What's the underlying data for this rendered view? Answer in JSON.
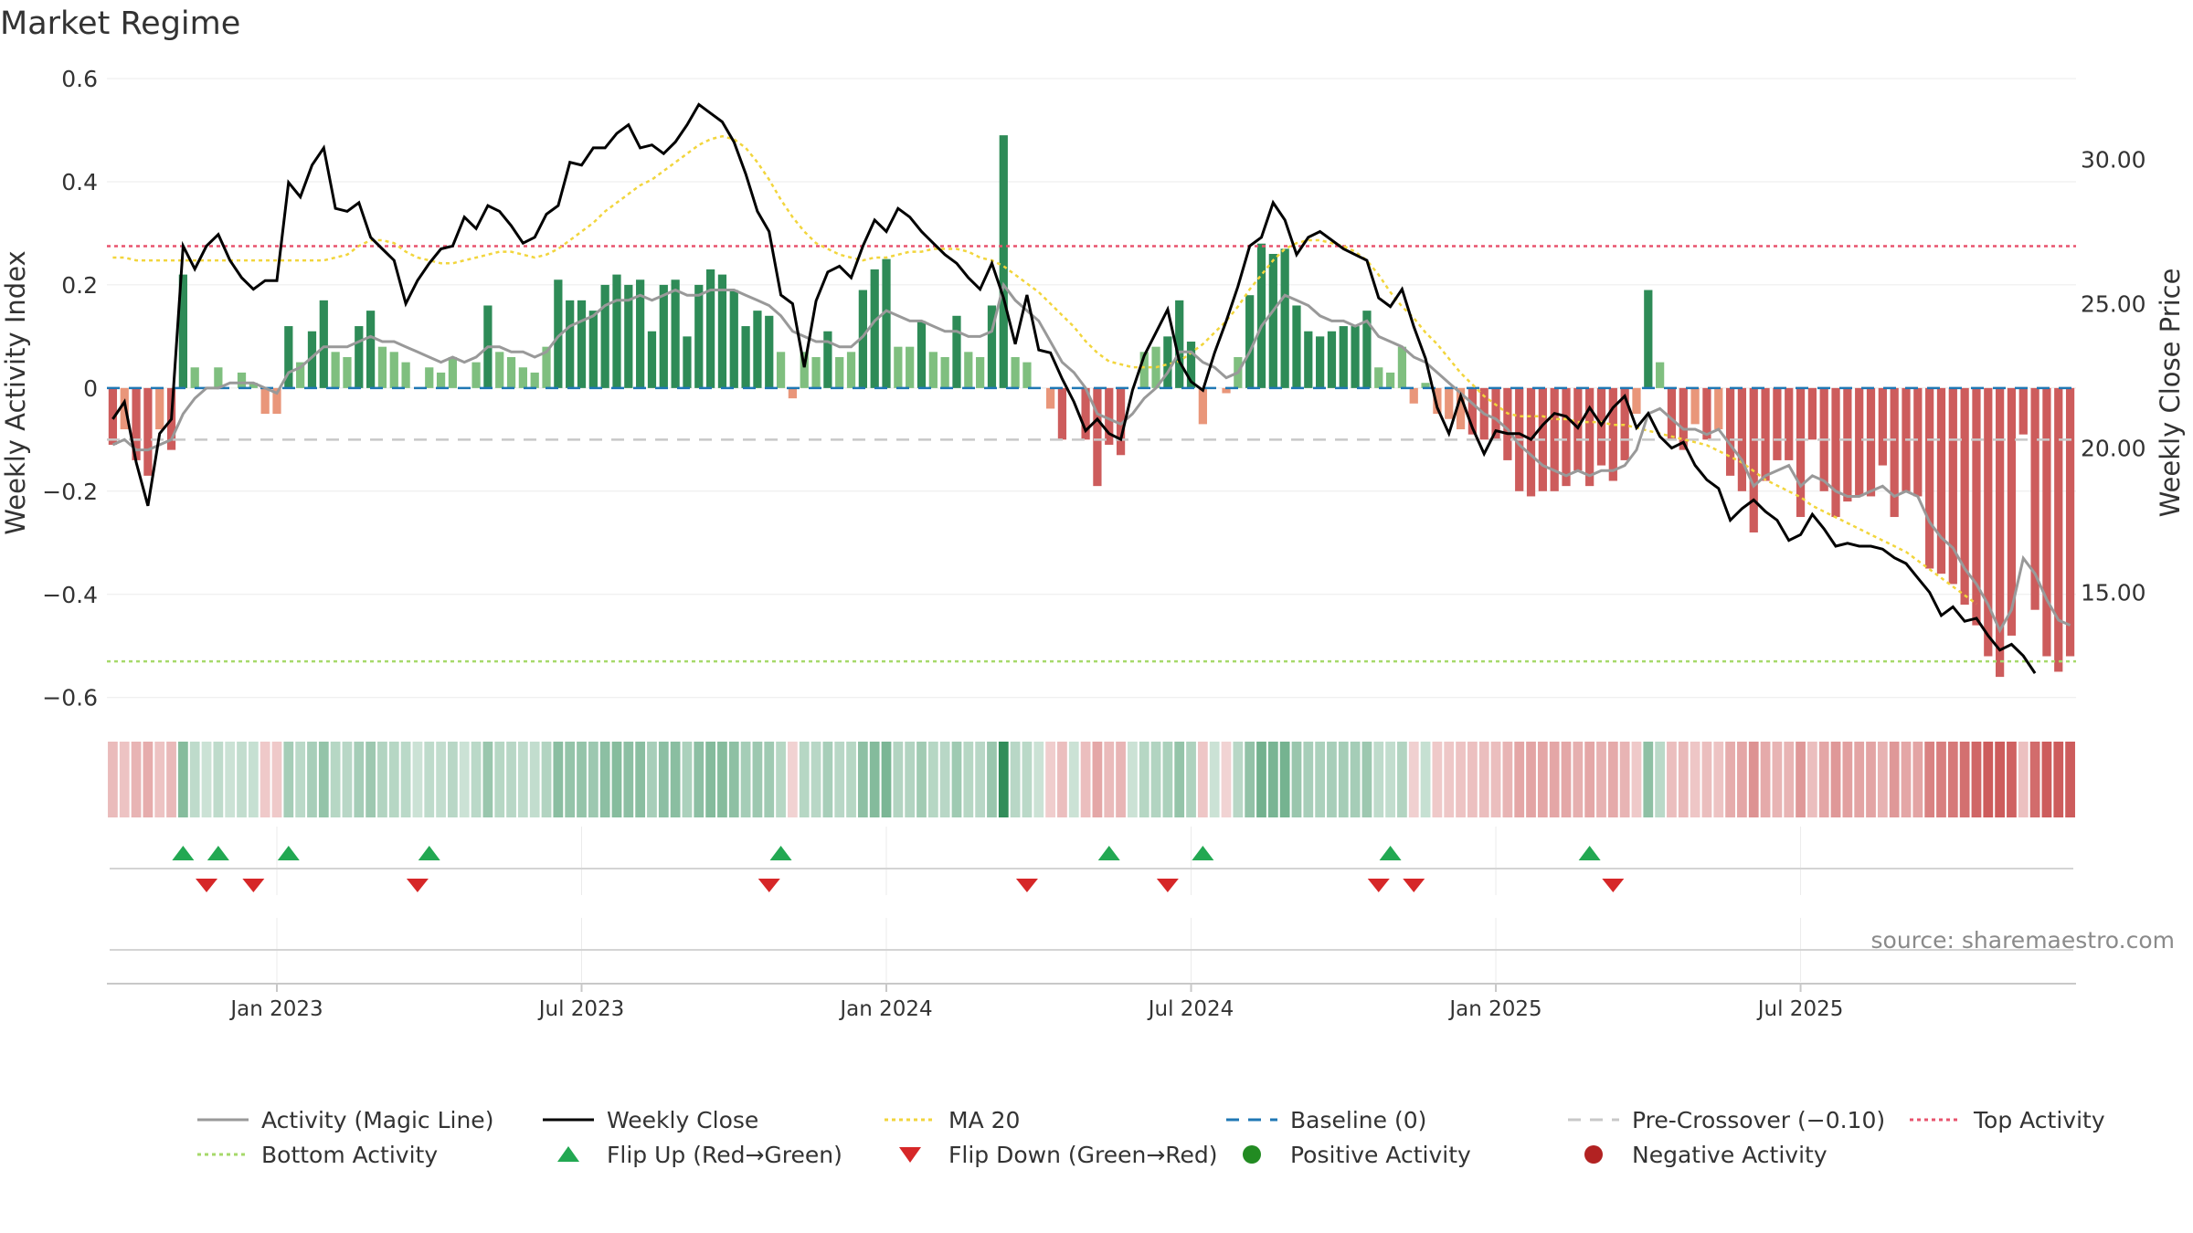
{
  "chart_data": {
    "type": "bar",
    "title": "Market Regime",
    "ylabel": "Weekly Activity Index",
    "y2label": "Weekly Close Price",
    "ylim": [
      -0.62,
      0.6
    ],
    "y_ticks": [
      "−0.6",
      "−0.4",
      "−0.2",
      "0",
      "0.2",
      "0.4",
      "0.6"
    ],
    "y_tick_values": [
      -0.6,
      -0.4,
      -0.2,
      0,
      0.2,
      0.4,
      0.6
    ],
    "y2lim": [
      11.0,
      32.8
    ],
    "y2_ticks": [
      "15.00",
      "20.00",
      "25.00",
      "30.00"
    ],
    "y2_tick_values": [
      15,
      20,
      25,
      30
    ],
    "x_ticks": [
      "Jan 2023",
      "Jul 2023",
      "Jan 2024",
      "Jul 2024",
      "Jan 2025",
      "Jul 2025"
    ],
    "x_tick_week_index": [
      14,
      40,
      66,
      92,
      118,
      144
    ],
    "reference_lines": {
      "baseline": 0,
      "pre_crossover": -0.1,
      "top_activity": 0.275,
      "bottom_activity": -0.53
    },
    "activity_bars": [
      -0.11,
      -0.08,
      -0.14,
      -0.17,
      -0.08,
      -0.12,
      0.22,
      0.04,
      0.0,
      0.04,
      0.0,
      0.03,
      0.01,
      -0.05,
      -0.05,
      0.12,
      0.05,
      0.11,
      0.17,
      0.07,
      0.06,
      0.12,
      0.15,
      0.08,
      0.07,
      0.05,
      0.0,
      0.04,
      0.03,
      0.06,
      0.0,
      0.05,
      0.16,
      0.07,
      0.06,
      0.04,
      0.03,
      0.08,
      0.21,
      0.17,
      0.17,
      0.15,
      0.2,
      0.22,
      0.2,
      0.21,
      0.11,
      0.2,
      0.21,
      0.1,
      0.2,
      0.23,
      0.22,
      0.19,
      0.12,
      0.15,
      0.14,
      0.07,
      -0.02,
      0.07,
      0.06,
      0.11,
      0.06,
      0.07,
      0.19,
      0.23,
      0.25,
      0.08,
      0.08,
      0.13,
      0.07,
      0.06,
      0.14,
      0.07,
      0.06,
      0.16,
      0.49,
      0.06,
      0.05,
      0.0,
      -0.04,
      -0.1,
      0.0,
      -0.1,
      -0.19,
      -0.11,
      -0.13,
      0.0,
      0.07,
      0.08,
      0.1,
      0.17,
      0.09,
      -0.07,
      0.0,
      -0.01,
      0.06,
      0.18,
      0.28,
      0.26,
      0.27,
      0.16,
      0.11,
      0.1,
      0.11,
      0.12,
      0.12,
      0.15,
      0.04,
      0.03,
      0.08,
      -0.03,
      0.01,
      -0.05,
      -0.06,
      -0.08,
      -0.09,
      -0.1,
      -0.1,
      -0.14,
      -0.2,
      -0.21,
      -0.2,
      -0.2,
      -0.19,
      -0.16,
      -0.19,
      -0.15,
      -0.18,
      -0.14,
      -0.05,
      0.19,
      0.05,
      -0.1,
      -0.12,
      -0.07,
      -0.1,
      -0.08,
      -0.17,
      -0.2,
      -0.28,
      -0.18,
      -0.14,
      -0.14,
      -0.25,
      -0.1,
      -0.2,
      -0.25,
      -0.22,
      -0.21,
      -0.21,
      -0.15,
      -0.25,
      -0.2,
      -0.21,
      -0.35,
      -0.36,
      -0.38,
      -0.42,
      -0.46,
      -0.52,
      -0.56,
      -0.48,
      -0.09,
      -0.43,
      -0.52,
      -0.55,
      -0.52
    ],
    "weekly_close": [
      21.0,
      21.6,
      19.5,
      18.0,
      20.5,
      21.0,
      27.0,
      26.2,
      27.0,
      27.4,
      26.5,
      25.9,
      25.5,
      25.8,
      25.8,
      29.2,
      28.7,
      29.8,
      30.4,
      28.3,
      28.2,
      28.5,
      27.3,
      26.9,
      26.5,
      25.0,
      25.8,
      26.4,
      26.9,
      27.0,
      28.0,
      27.6,
      28.4,
      28.2,
      27.7,
      27.1,
      27.3,
      28.1,
      28.4,
      29.9,
      29.8,
      30.4,
      30.4,
      30.9,
      31.2,
      30.4,
      30.5,
      30.2,
      30.6,
      31.2,
      31.9,
      31.6,
      31.3,
      30.6,
      29.5,
      28.2,
      27.5,
      25.3,
      25.0,
      22.8,
      25.1,
      26.1,
      26.3,
      25.9,
      27.0,
      27.9,
      27.5,
      28.3,
      28.0,
      27.5,
      27.1,
      26.7,
      26.4,
      25.9,
      25.5,
      26.4,
      25.2,
      23.6,
      25.3,
      23.4,
      23.3,
      22.4,
      21.6,
      20.6,
      21.0,
      20.5,
      20.3,
      22.0,
      23.2,
      24.0,
      24.8,
      23.0,
      22.3,
      22.0,
      23.3,
      24.4,
      25.6,
      27.0,
      27.3,
      28.5,
      27.9,
      26.7,
      27.3,
      27.5,
      27.2,
      26.9,
      26.7,
      26.5,
      25.2,
      24.9,
      25.5,
      24.2,
      23.1,
      21.4,
      20.5,
      21.8,
      20.7,
      19.8,
      20.6,
      20.5,
      20.5,
      20.3,
      20.8,
      21.2,
      21.1,
      20.7,
      21.4,
      20.8,
      21.4,
      21.8,
      20.7,
      21.2,
      20.4,
      20.0,
      20.2,
      19.4,
      18.9,
      18.6,
      17.5,
      17.9,
      18.2,
      17.8,
      17.5,
      16.8,
      17.0,
      17.7,
      17.2,
      16.6,
      16.7,
      16.6,
      16.6,
      16.5,
      16.2,
      16.0,
      15.5,
      15.0,
      14.2,
      14.5,
      14.0,
      14.1,
      13.5,
      13.0,
      13.2,
      12.8,
      12.2
    ],
    "activity_magic_line": [
      -0.11,
      -0.1,
      -0.12,
      -0.12,
      -0.11,
      -0.1,
      -0.05,
      -0.02,
      0.0,
      0.0,
      0.01,
      0.01,
      0.01,
      0.0,
      -0.01,
      0.03,
      0.04,
      0.06,
      0.08,
      0.08,
      0.08,
      0.09,
      0.1,
      0.09,
      0.09,
      0.08,
      0.07,
      0.06,
      0.05,
      0.06,
      0.05,
      0.06,
      0.08,
      0.08,
      0.07,
      0.07,
      0.06,
      0.07,
      0.1,
      0.12,
      0.13,
      0.14,
      0.16,
      0.17,
      0.17,
      0.18,
      0.17,
      0.18,
      0.19,
      0.18,
      0.18,
      0.19,
      0.19,
      0.19,
      0.18,
      0.17,
      0.16,
      0.14,
      0.11,
      0.1,
      0.09,
      0.09,
      0.08,
      0.08,
      0.1,
      0.13,
      0.15,
      0.14,
      0.13,
      0.13,
      0.12,
      0.11,
      0.11,
      0.1,
      0.1,
      0.11,
      0.2,
      0.17,
      0.15,
      0.13,
      0.09,
      0.05,
      0.03,
      0.0,
      -0.05,
      -0.06,
      -0.07,
      -0.05,
      -0.02,
      0.0,
      0.03,
      0.07,
      0.07,
      0.05,
      0.04,
      0.02,
      0.03,
      0.07,
      0.12,
      0.15,
      0.18,
      0.17,
      0.16,
      0.14,
      0.13,
      0.13,
      0.12,
      0.13,
      0.1,
      0.09,
      0.08,
      0.06,
      0.05,
      0.03,
      0.01,
      -0.01,
      -0.03,
      -0.05,
      -0.06,
      -0.08,
      -0.11,
      -0.13,
      -0.15,
      -0.16,
      -0.17,
      -0.16,
      -0.17,
      -0.16,
      -0.16,
      -0.15,
      -0.12,
      -0.05,
      -0.04,
      -0.06,
      -0.08,
      -0.08,
      -0.09,
      -0.08,
      -0.11,
      -0.14,
      -0.19,
      -0.17,
      -0.16,
      -0.15,
      -0.19,
      -0.17,
      -0.18,
      -0.2,
      -0.21,
      -0.21,
      -0.2,
      -0.19,
      -0.21,
      -0.2,
      -0.21,
      -0.26,
      -0.29,
      -0.31,
      -0.35,
      -0.38,
      -0.42,
      -0.47,
      -0.43,
      -0.33,
      -0.36,
      -0.41,
      -0.45,
      -0.46
    ],
    "ma20": [
      26.6,
      26.6,
      26.5,
      26.5,
      26.5,
      26.5,
      26.5,
      26.5,
      26.5,
      26.5,
      26.5,
      26.5,
      26.5,
      26.5,
      26.5,
      26.5,
      26.5,
      26.5,
      26.5,
      26.6,
      26.7,
      27.0,
      27.2,
      27.2,
      27.1,
      26.8,
      26.6,
      26.5,
      26.4,
      26.4,
      26.5,
      26.6,
      26.7,
      26.8,
      26.8,
      26.7,
      26.6,
      26.7,
      26.9,
      27.2,
      27.5,
      27.8,
      28.2,
      28.5,
      28.8,
      29.1,
      29.3,
      29.6,
      29.9,
      30.2,
      30.5,
      30.7,
      30.8,
      30.7,
      30.4,
      29.9,
      29.3,
      28.6,
      28.0,
      27.5,
      27.1,
      26.9,
      26.7,
      26.6,
      26.5,
      26.6,
      26.6,
      26.7,
      26.8,
      26.8,
      26.9,
      26.9,
      26.9,
      26.8,
      26.6,
      26.5,
      26.3,
      26.0,
      25.7,
      25.4,
      25.0,
      24.6,
      24.2,
      23.7,
      23.3,
      23.0,
      22.9,
      22.8,
      22.8,
      22.8,
      22.9,
      23.0,
      23.3,
      23.6,
      24.0,
      24.4,
      24.9,
      25.5,
      26.0,
      26.5,
      26.9,
      27.1,
      27.2,
      27.2,
      27.1,
      27.0,
      26.8,
      26.5,
      26.0,
      25.4,
      24.9,
      24.5,
      24.0,
      23.6,
      23.1,
      22.6,
      22.2,
      21.8,
      21.5,
      21.2,
      21.1,
      21.1,
      21.1,
      21.0,
      21.0,
      20.9,
      20.9,
      20.9,
      20.8,
      20.8,
      20.7,
      20.6,
      20.5,
      20.4,
      20.3,
      20.2,
      20.1,
      19.9,
      19.7,
      19.5,
      19.2,
      18.9,
      18.7,
      18.5,
      18.3,
      18.0,
      17.8,
      17.6,
      17.4,
      17.2,
      17.0,
      16.8,
      16.6,
      16.4,
      16.1,
      15.8,
      15.5,
      15.2,
      14.9,
      14.6
    ],
    "flip_up_weeks": [
      6,
      9,
      15,
      27,
      57,
      85,
      93,
      109,
      126
    ],
    "flip_down_weeks": [
      8,
      12,
      26,
      56,
      78,
      90,
      108,
      111,
      128
    ],
    "legend": [
      "Activity (Magic Line)",
      "Weekly Close",
      "MA 20",
      "Baseline (0)",
      "Pre-Crossover (−0.10)",
      "Top Activity",
      "Bottom Activity",
      "Flip Up (Red→Green)",
      "Flip Down (Green→Red)",
      "Positive Activity",
      "Negative Activity"
    ],
    "legend_placement": "bottom",
    "colors": {
      "positive_strong": "#2e8b57",
      "positive_light": "#7fbf7f",
      "negative_strong": "#cd5c5c",
      "negative_light": "#e9967a",
      "weekly_close": "#000000",
      "magic_line": "#999999",
      "ma20": "#f2d53c",
      "baseline": "#1f77b4",
      "pre_crossover": "#c8c8c8",
      "top_activity": "#e8546e",
      "bottom_activity": "#a6d96a",
      "flip_up": "#22a852",
      "flip_down": "#d62728",
      "positive_marker": "#228b22",
      "negative_marker": "#b22222"
    },
    "source": "source: sharemaestro.com"
  }
}
